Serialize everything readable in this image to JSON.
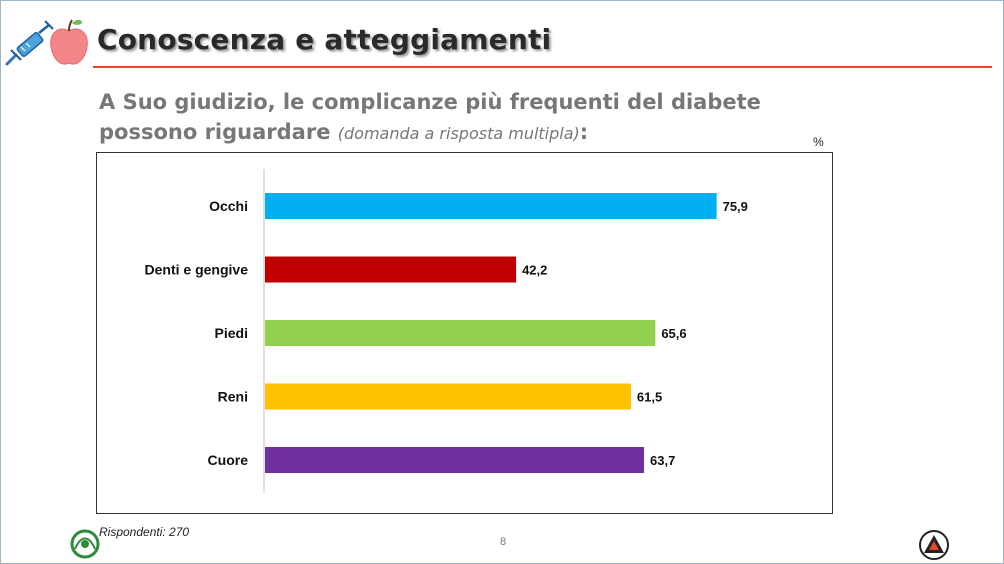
{
  "slide": {
    "title": "Conoscenza e atteggiamenti",
    "question_main": "A Suo giudizio, le complicanze più frequenti del diabete possono riguardare",
    "question_note": "(domanda a risposta multipla)",
    "question_end": ":",
    "footnote": "Rispondenti: 270",
    "page_number": "8"
  },
  "icons": {
    "header": [
      "syringe-icon",
      "apple-icon"
    ],
    "footer": [
      "association-logo-icon",
      "triangle-logo-icon"
    ]
  },
  "chart_data": {
    "type": "bar",
    "orientation": "horizontal",
    "unit_label": "%",
    "categories": [
      "Occhi",
      "Denti e gengive",
      "Piedi",
      "Reni",
      "Cuore"
    ],
    "values": [
      75.9,
      42.2,
      65.6,
      61.5,
      63.7
    ],
    "value_labels": [
      "75,9",
      "42,2",
      "65,6",
      "61,5",
      "63,7"
    ],
    "colors": [
      "#00b0f0",
      "#c00000",
      "#92d050",
      "#ffc000",
      "#7030a0"
    ],
    "xlim": [
      0,
      100
    ],
    "grid": false,
    "legend": "none"
  }
}
